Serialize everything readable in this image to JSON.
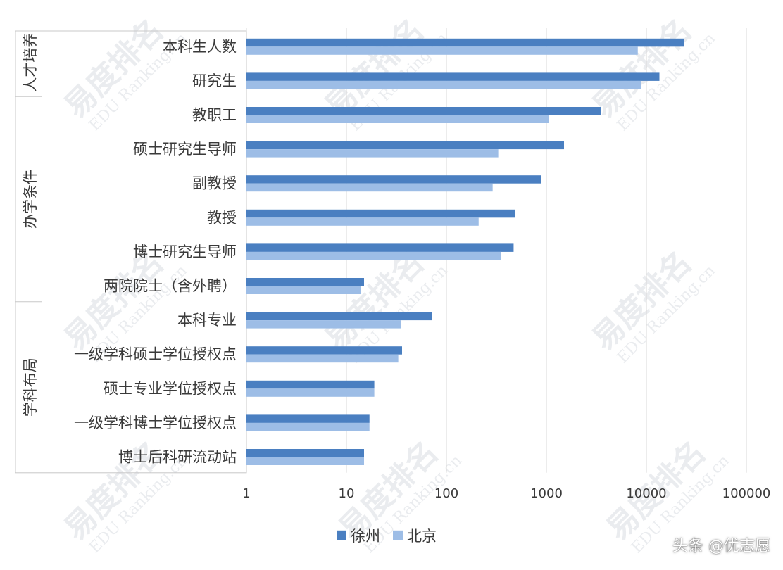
{
  "credit": "头条 @优志愿",
  "watermark": {
    "brand": "易度排名",
    "sub": "EDU Ranking.cn"
  },
  "colors": {
    "xuzhou": "#4a7fc1",
    "beijing": "#9dbde6",
    "gridline": "#d9d9d9",
    "border": "#c8c8c8"
  },
  "chart_data": {
    "type": "bar",
    "orientation": "horizontal",
    "scale": "log",
    "xlim": [
      1,
      100000
    ],
    "ticks": [
      "1",
      "10",
      "100",
      "1000",
      "10000",
      "100000"
    ],
    "grid": true,
    "legend_position": "bottom",
    "groups": [
      {
        "label": "人才培养",
        "start": 0,
        "count": 2
      },
      {
        "label": "办学条件",
        "start": 2,
        "count": 6
      },
      {
        "label": "学科布局",
        "start": 8,
        "count": 5
      }
    ],
    "categories": [
      "本科生人数",
      "研究生",
      "教职工",
      "硕士研究生导师",
      "副教授",
      "教授",
      "博士研究生导师",
      "两院院士（含外聘）",
      "本科专业",
      "一级学科硕士学位授权点",
      "硕士专业学位授权点",
      "一级学科博士学位授权点",
      "博士后科研流动站"
    ],
    "series": [
      {
        "name": "徐州",
        "values": [
          24000,
          13500,
          3500,
          1500,
          880,
          490,
          470,
          15,
          72,
          36,
          19,
          17,
          15
        ]
      },
      {
        "name": "北京",
        "values": [
          8200,
          8800,
          1050,
          330,
          290,
          210,
          350,
          14,
          35,
          33,
          19,
          17,
          15
        ]
      }
    ]
  }
}
